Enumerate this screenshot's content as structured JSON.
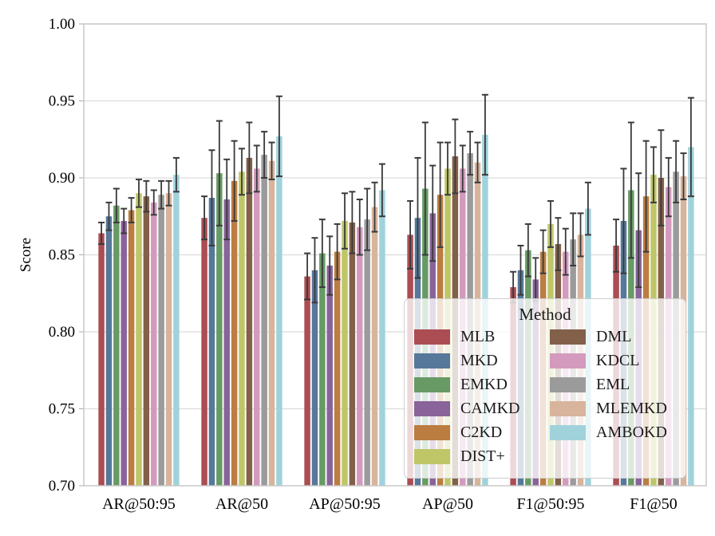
{
  "chart_data": {
    "type": "bar",
    "title": "",
    "xlabel": "",
    "ylabel": "Score",
    "ylim": [
      0.7,
      1.0
    ],
    "ytick_step": 0.05,
    "ytick_labels": [
      "0.70",
      "0.75",
      "0.80",
      "0.85",
      "0.90",
      "0.95",
      "1.00"
    ],
    "grid": true,
    "legend_title": "Method",
    "legend_position": "lower right",
    "error_bars": true,
    "categories": [
      "AR@50:95",
      "AR@50",
      "AP@50:95",
      "AP@50",
      "F1@50:95",
      "F1@50"
    ],
    "series": [
      {
        "name": "MLB",
        "color": "#ab4d53",
        "values": [
          0.864,
          0.874,
          0.836,
          0.863,
          0.829,
          0.856
        ],
        "errors": [
          0.007,
          0.014,
          0.015,
          0.022,
          0.01,
          0.017
        ]
      },
      {
        "name": "MKD",
        "color": "#56789a",
        "values": [
          0.875,
          0.887,
          0.84,
          0.874,
          0.84,
          0.872
        ],
        "errors": [
          0.009,
          0.031,
          0.021,
          0.039,
          0.016,
          0.034
        ]
      },
      {
        "name": "EMKD",
        "color": "#679a64",
        "values": [
          0.882,
          0.903,
          0.851,
          0.893,
          0.853,
          0.892
        ],
        "errors": [
          0.011,
          0.034,
          0.022,
          0.043,
          0.017,
          0.044
        ]
      },
      {
        "name": "CAMKD",
        "color": "#8a639a",
        "values": [
          0.872,
          0.886,
          0.843,
          0.877,
          0.834,
          0.866
        ],
        "errors": [
          0.008,
          0.026,
          0.019,
          0.031,
          0.014,
          0.037
        ]
      },
      {
        "name": "C2KD",
        "color": "#bb7d40",
        "values": [
          0.879,
          0.898,
          0.852,
          0.889,
          0.852,
          0.888
        ],
        "errors": [
          0.008,
          0.026,
          0.018,
          0.034,
          0.014,
          0.036
        ]
      },
      {
        "name": "DIST+",
        "color": "#bec668",
        "values": [
          0.89,
          0.904,
          0.872,
          0.906,
          0.87,
          0.902
        ],
        "errors": [
          0.009,
          0.015,
          0.018,
          0.017,
          0.015,
          0.018
        ]
      },
      {
        "name": "DML",
        "color": "#82604a",
        "values": [
          0.888,
          0.913,
          0.871,
          0.914,
          0.857,
          0.9
        ],
        "errors": [
          0.01,
          0.023,
          0.02,
          0.024,
          0.017,
          0.031
        ]
      },
      {
        "name": "KDCL",
        "color": "#d49abe",
        "values": [
          0.884,
          0.906,
          0.868,
          0.906,
          0.852,
          0.894
        ],
        "errors": [
          0.008,
          0.015,
          0.018,
          0.015,
          0.015,
          0.019
        ]
      },
      {
        "name": "EML",
        "color": "#9b9b9b",
        "values": [
          0.889,
          0.915,
          0.873,
          0.916,
          0.86,
          0.904
        ],
        "errors": [
          0.009,
          0.015,
          0.02,
          0.014,
          0.017,
          0.02
        ]
      },
      {
        "name": "MLEMKD",
        "color": "#d7b49b",
        "values": [
          0.89,
          0.911,
          0.881,
          0.91,
          0.863,
          0.901
        ],
        "errors": [
          0.008,
          0.012,
          0.016,
          0.013,
          0.014,
          0.015
        ]
      },
      {
        "name": "AMBOKD",
        "color": "#a0d2dc",
        "values": [
          0.902,
          0.927,
          0.892,
          0.928,
          0.88,
          0.92
        ],
        "errors": [
          0.011,
          0.026,
          0.017,
          0.026,
          0.017,
          0.032
        ]
      }
    ]
  },
  "styles": {
    "grid_color": "#dcdcdc",
    "axis_border_color": "#c8c8c8",
    "tick_color": "#aaaaaa",
    "error_bar_color": "#3a3a3a",
    "text_color": "#000000",
    "background": "#ffffff"
  }
}
